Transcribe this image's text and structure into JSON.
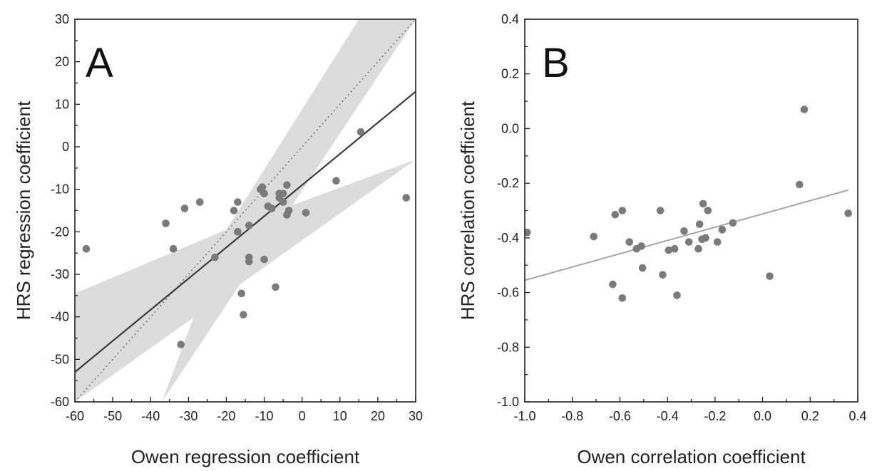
{
  "chart_data": [
    {
      "type": "scatter",
      "panel_label": "A",
      "xlabel": "Owen regression coefficient",
      "ylabel": "HRS regression coefficient",
      "xlim": [
        -60,
        30
      ],
      "ylim": [
        -60,
        30
      ],
      "xticks": [
        -60,
        -50,
        -40,
        -30,
        -20,
        -10,
        0,
        10,
        20,
        30
      ],
      "yticks": [
        -60,
        -50,
        -40,
        -30,
        -20,
        -10,
        0,
        10,
        20,
        30
      ],
      "grid": false,
      "points": [
        {
          "x": -57,
          "y": -24
        },
        {
          "x": -36,
          "y": -18
        },
        {
          "x": -34,
          "y": -24
        },
        {
          "x": -31,
          "y": -14.5
        },
        {
          "x": -27,
          "y": -13
        },
        {
          "x": -32,
          "y": -46.5
        },
        {
          "x": -23,
          "y": -26
        },
        {
          "x": -18,
          "y": -15
        },
        {
          "x": -17,
          "y": -13
        },
        {
          "x": -17,
          "y": -20
        },
        {
          "x": -16,
          "y": -34.5
        },
        {
          "x": -15.5,
          "y": -39.5
        },
        {
          "x": -14,
          "y": -18.5
        },
        {
          "x": -14,
          "y": -26
        },
        {
          "x": -14,
          "y": -27
        },
        {
          "x": -11,
          "y": -10
        },
        {
          "x": -10.5,
          "y": -9.5
        },
        {
          "x": -10,
          "y": -11
        },
        {
          "x": -10,
          "y": -26.5
        },
        {
          "x": -9,
          "y": -14
        },
        {
          "x": -8,
          "y": -14.5
        },
        {
          "x": -7,
          "y": -33
        },
        {
          "x": -6,
          "y": -11
        },
        {
          "x": -6,
          "y": -12
        },
        {
          "x": -5,
          "y": -13
        },
        {
          "x": -5,
          "y": -11
        },
        {
          "x": -4,
          "y": -9
        },
        {
          "x": -4,
          "y": -16
        },
        {
          "x": -3.5,
          "y": -15
        },
        {
          "x": 1,
          "y": -15.5
        },
        {
          "x": 9,
          "y": -8
        },
        {
          "x": 15.5,
          "y": 3.5
        },
        {
          "x": 27.5,
          "y": -12
        }
      ],
      "fit_line": {
        "x": [
          -60,
          30
        ],
        "y": [
          -53,
          13
        ]
      },
      "identity_line": {
        "x": [
          -60,
          30
        ],
        "y": [
          -60,
          30
        ]
      },
      "confidence_band": {
        "upper": [
          {
            "x": -60,
            "y": -34.5
          },
          {
            "x": -20,
            "y": -19.5
          },
          {
            "x": 15,
            "y": 30
          },
          {
            "x": 30,
            "y": 30
          }
        ],
        "lower": [
          {
            "x": -37,
            "y": -60
          },
          {
            "x": -20,
            "y": -19.5
          },
          {
            "x": 30,
            "y": -3
          },
          {
            "x": -60,
            "y": -60
          }
        ]
      }
    },
    {
      "type": "scatter",
      "panel_label": "B",
      "xlabel": "Owen correlation coefficient",
      "ylabel": "HRS correlation coefficient",
      "xlim": [
        -1.0,
        0.4
      ],
      "ylim": [
        -1.0,
        0.4
      ],
      "xticks": [
        "-1.0",
        "-0.8",
        "-0.6",
        "-0.4",
        "-0.2",
        "0.0",
        "0.2",
        "0.4"
      ],
      "yticks": [
        "-1.0",
        "-0.8",
        "-0.6",
        "-0.4",
        "-0.2",
        "0.0",
        "0.2",
        "0.4"
      ],
      "grid": false,
      "points": [
        {
          "x": -0.99,
          "y": -0.38
        },
        {
          "x": -0.71,
          "y": -0.395
        },
        {
          "x": -0.63,
          "y": -0.57
        },
        {
          "x": -0.62,
          "y": -0.315
        },
        {
          "x": -0.59,
          "y": -0.3
        },
        {
          "x": -0.59,
          "y": -0.62
        },
        {
          "x": -0.56,
          "y": -0.415
        },
        {
          "x": -0.53,
          "y": -0.44
        },
        {
          "x": -0.51,
          "y": -0.43
        },
        {
          "x": -0.505,
          "y": -0.51
        },
        {
          "x": -0.43,
          "y": -0.3
        },
        {
          "x": -0.42,
          "y": -0.535
        },
        {
          "x": -0.395,
          "y": -0.445
        },
        {
          "x": -0.37,
          "y": -0.44
        },
        {
          "x": -0.36,
          "y": -0.61
        },
        {
          "x": -0.33,
          "y": -0.375
        },
        {
          "x": -0.31,
          "y": -0.415
        },
        {
          "x": -0.27,
          "y": -0.44
        },
        {
          "x": -0.265,
          "y": -0.35
        },
        {
          "x": -0.255,
          "y": -0.405
        },
        {
          "x": -0.25,
          "y": -0.275
        },
        {
          "x": -0.24,
          "y": -0.4
        },
        {
          "x": -0.23,
          "y": -0.3
        },
        {
          "x": -0.19,
          "y": -0.415
        },
        {
          "x": -0.17,
          "y": -0.37
        },
        {
          "x": -0.125,
          "y": -0.345
        },
        {
          "x": 0.03,
          "y": -0.54
        },
        {
          "x": 0.155,
          "y": -0.205
        },
        {
          "x": 0.175,
          "y": 0.07
        },
        {
          "x": 0.36,
          "y": -0.31
        }
      ],
      "fit_line": {
        "x": [
          -1.0,
          0.36
        ],
        "y": [
          -0.555,
          -0.225
        ]
      }
    }
  ],
  "colors": {
    "point": "#7a7a7a",
    "fit_line_A": "#3c3c3c",
    "fit_line_B": "#a6a6a6",
    "band": "#dcdcdc",
    "identity": "#777777",
    "axis": "#222222"
  }
}
